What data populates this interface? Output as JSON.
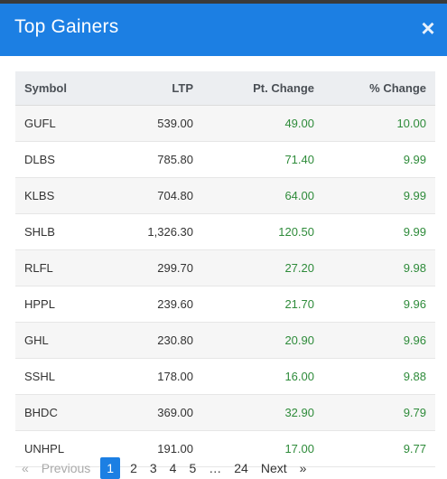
{
  "dialog": {
    "title": "Top Gainers",
    "close_label": "×"
  },
  "table": {
    "headers": [
      "Symbol",
      "LTP",
      "Pt. Change",
      "% Change"
    ],
    "rows": [
      [
        "GUFL",
        "539.00",
        "49.00",
        "10.00"
      ],
      [
        "DLBS",
        "785.80",
        "71.40",
        "9.99"
      ],
      [
        "KLBS",
        "704.80",
        "64.00",
        "9.99"
      ],
      [
        "SHLB",
        "1,326.30",
        "120.50",
        "9.99"
      ],
      [
        "RLFL",
        "299.70",
        "27.20",
        "9.98"
      ],
      [
        "HPPL",
        "239.60",
        "21.70",
        "9.96"
      ],
      [
        "GHL",
        "230.80",
        "20.90",
        "9.96"
      ],
      [
        "SSHL",
        "178.00",
        "16.00",
        "9.88"
      ],
      [
        "BHDC",
        "369.00",
        "32.90",
        "9.79"
      ],
      [
        "UNHPL",
        "191.00",
        "17.00",
        "9.77"
      ]
    ]
  },
  "pagination": {
    "prev_arrow": "«",
    "prev_label": "Previous",
    "pages": [
      "1",
      "2",
      "3",
      "4",
      "5"
    ],
    "ellipsis": "…",
    "last_page": "24",
    "next_label": "Next",
    "next_arrow": "»",
    "current": "1"
  },
  "colors": {
    "accent": "#1c7fe3",
    "positive": "#2e8b3a"
  }
}
